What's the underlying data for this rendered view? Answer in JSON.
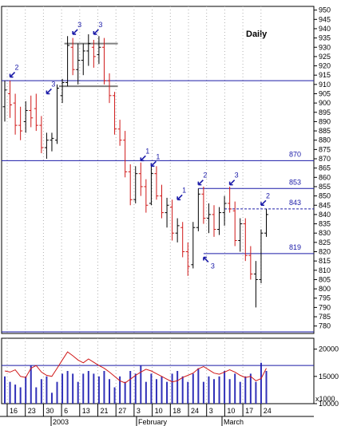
{
  "chart_data": {
    "type": "ohlc",
    "title": "Daily",
    "ylim": [
      776,
      952
    ],
    "yticks": [
      780,
      785,
      790,
      795,
      800,
      805,
      810,
      815,
      820,
      825,
      830,
      835,
      840,
      845,
      850,
      855,
      860,
      865,
      870,
      875,
      880,
      885,
      890,
      895,
      900,
      905,
      910,
      915,
      920,
      925,
      930,
      935,
      940,
      945,
      950
    ],
    "xtick_labels": [
      "16",
      "23",
      "30",
      "6",
      "13",
      "21",
      "27",
      "3",
      "10",
      "18",
      "24",
      "3",
      "10",
      "17",
      "24"
    ],
    "month_labels": [
      "2003",
      "February",
      "March"
    ],
    "grid": true,
    "bars": [
      {
        "o": 898,
        "h": 912,
        "l": 890,
        "c": 907,
        "color": "black"
      },
      {
        "o": 905,
        "h": 912,
        "l": 892,
        "c": 899,
        "color": "red"
      },
      {
        "o": 900,
        "h": 905,
        "l": 883,
        "c": 888,
        "color": "red"
      },
      {
        "o": 888,
        "h": 898,
        "l": 880,
        "c": 885,
        "color": "red"
      },
      {
        "o": 890,
        "h": 901,
        "l": 884,
        "c": 896,
        "color": "black"
      },
      {
        "o": 896,
        "h": 904,
        "l": 887,
        "c": 892,
        "color": "red"
      },
      {
        "o": 897,
        "h": 905,
        "l": 885,
        "c": 888,
        "color": "red"
      },
      {
        "o": 888,
        "h": 893,
        "l": 873,
        "c": 876,
        "color": "red"
      },
      {
        "o": 876,
        "h": 884,
        "l": 870,
        "c": 880,
        "color": "black"
      },
      {
        "o": 880,
        "h": 884,
        "l": 874,
        "c": 881,
        "color": "black"
      },
      {
        "o": 880,
        "h": 910,
        "l": 878,
        "c": 908,
        "color": "black"
      },
      {
        "o": 904,
        "h": 913,
        "l": 900,
        "c": 911,
        "color": "black"
      },
      {
        "o": 911,
        "h": 936,
        "l": 909,
        "c": 931,
        "color": "black"
      },
      {
        "o": 930,
        "h": 935,
        "l": 915,
        "c": 918,
        "color": "red"
      },
      {
        "o": 918,
        "h": 932,
        "l": 910,
        "c": 923,
        "color": "black"
      },
      {
        "o": 923,
        "h": 932,
        "l": 915,
        "c": 928,
        "color": "black"
      },
      {
        "o": 928,
        "h": 937,
        "l": 920,
        "c": 932,
        "color": "black"
      },
      {
        "o": 930,
        "h": 934,
        "l": 919,
        "c": 925,
        "color": "red"
      },
      {
        "o": 926,
        "h": 936,
        "l": 921,
        "c": 930,
        "color": "black"
      },
      {
        "o": 930,
        "h": 935,
        "l": 910,
        "c": 912,
        "color": "red"
      },
      {
        "o": 912,
        "h": 916,
        "l": 900,
        "c": 904,
        "color": "red"
      },
      {
        "o": 904,
        "h": 906,
        "l": 883,
        "c": 886,
        "color": "red"
      },
      {
        "o": 886,
        "h": 891,
        "l": 877,
        "c": 880,
        "color": "red"
      },
      {
        "o": 880,
        "h": 885,
        "l": 860,
        "c": 863,
        "color": "red"
      },
      {
        "o": 863,
        "h": 867,
        "l": 845,
        "c": 848,
        "color": "red"
      },
      {
        "o": 848,
        "h": 866,
        "l": 846,
        "c": 862,
        "color": "black"
      },
      {
        "o": 862,
        "h": 868,
        "l": 850,
        "c": 855,
        "color": "red"
      },
      {
        "o": 855,
        "h": 859,
        "l": 841,
        "c": 845,
        "color": "red"
      },
      {
        "o": 846,
        "h": 866,
        "l": 845,
        "c": 862,
        "color": "black"
      },
      {
        "o": 862,
        "h": 866,
        "l": 848,
        "c": 850,
        "color": "red"
      },
      {
        "o": 850,
        "h": 856,
        "l": 838,
        "c": 841,
        "color": "red"
      },
      {
        "o": 841,
        "h": 849,
        "l": 833,
        "c": 845,
        "color": "black"
      },
      {
        "o": 844,
        "h": 848,
        "l": 826,
        "c": 830,
        "color": "red"
      },
      {
        "o": 830,
        "h": 838,
        "l": 825,
        "c": 834,
        "color": "black"
      },
      {
        "o": 833,
        "h": 836,
        "l": 817,
        "c": 820,
        "color": "red"
      },
      {
        "o": 820,
        "h": 825,
        "l": 807,
        "c": 812,
        "color": "red"
      },
      {
        "o": 813,
        "h": 836,
        "l": 811,
        "c": 833,
        "color": "black"
      },
      {
        "o": 833,
        "h": 854,
        "l": 831,
        "c": 851,
        "color": "black"
      },
      {
        "o": 851,
        "h": 855,
        "l": 835,
        "c": 838,
        "color": "red"
      },
      {
        "o": 838,
        "h": 846,
        "l": 830,
        "c": 840,
        "color": "black"
      },
      {
        "o": 840,
        "h": 845,
        "l": 828,
        "c": 832,
        "color": "red"
      },
      {
        "o": 832,
        "h": 844,
        "l": 829,
        "c": 841,
        "color": "black"
      },
      {
        "o": 841,
        "h": 850,
        "l": 834,
        "c": 846,
        "color": "black"
      },
      {
        "o": 846,
        "h": 855,
        "l": 841,
        "c": 843,
        "color": "red"
      },
      {
        "o": 842,
        "h": 847,
        "l": 823,
        "c": 826,
        "color": "red"
      },
      {
        "o": 826,
        "h": 838,
        "l": 820,
        "c": 835,
        "color": "black"
      },
      {
        "o": 835,
        "h": 838,
        "l": 815,
        "c": 818,
        "color": "red"
      },
      {
        "o": 818,
        "h": 823,
        "l": 805,
        "c": 808,
        "color": "red"
      },
      {
        "o": 808,
        "h": 815,
        "l": 790,
        "c": 805,
        "color": "black"
      },
      {
        "o": 805,
        "h": 832,
        "l": 803,
        "c": 830,
        "color": "black"
      },
      {
        "o": 830,
        "h": 843,
        "l": 828,
        "c": 840,
        "color": "black"
      }
    ],
    "horizontal_lines": [
      {
        "y": 912,
        "style": "solid",
        "label": ""
      },
      {
        "y": 869,
        "style": "solid",
        "label": "870"
      },
      {
        "y": 854,
        "style": "solid",
        "label": "853"
      },
      {
        "y": 843,
        "style": "dashed",
        "label": "843"
      },
      {
        "y": 819,
        "style": "solid",
        "label": "819"
      }
    ],
    "segments": [
      {
        "y": 932,
        "from": 12,
        "to": 21,
        "color": "gray"
      },
      {
        "y": 909,
        "from": 11,
        "to": 21,
        "color": "gray"
      }
    ],
    "annotations": [
      {
        "bar": 1,
        "y": 914,
        "label": "2"
      },
      {
        "bar": 8,
        "y": 905,
        "label": "3"
      },
      {
        "bar": 13,
        "y": 937,
        "label": "3"
      },
      {
        "bar": 17,
        "y": 937,
        "label": "3"
      },
      {
        "bar": 26,
        "y": 869,
        "label": "1"
      },
      {
        "bar": 28,
        "y": 866,
        "label": "1"
      },
      {
        "bar": 33,
        "y": 848,
        "label": "1"
      },
      {
        "bar": 37,
        "y": 856,
        "label": "2"
      },
      {
        "bar": 43,
        "y": 856,
        "label": "3"
      },
      {
        "bar": 49,
        "y": 845,
        "label": "2"
      },
      {
        "bar": 38,
        "y": 817,
        "label": "3",
        "up": true
      }
    ],
    "volume": {
      "ylim": [
        10000,
        22000
      ],
      "yticks": [
        10000,
        15000,
        20000
      ],
      "units": "x1000",
      "level_line": 17000,
      "bars": [
        15000,
        14000,
        13500,
        13000,
        15000,
        17000,
        13000,
        14500,
        15000,
        12000,
        14000,
        15500,
        16000,
        15500,
        14000,
        15500,
        16000,
        15500,
        15000,
        16000,
        14500,
        13000,
        15000,
        14000,
        16000,
        15500,
        17000,
        14000,
        15500,
        14500,
        15000,
        14000,
        15500,
        16000,
        15000,
        14000,
        15500,
        16500,
        14000,
        15000,
        14500,
        15000,
        16000,
        14500,
        15500,
        14000,
        15000,
        15500,
        14000,
        17500,
        16000
      ],
      "oscillator": [
        16000,
        15800,
        16200,
        15000,
        14800,
        16500,
        17000,
        15800,
        15200,
        15000,
        16500,
        18000,
        19500,
        18800,
        18000,
        17500,
        18200,
        17600,
        17000,
        16500,
        15800,
        15000,
        14200,
        13800,
        14500,
        15200,
        15800,
        16300,
        16000,
        15500,
        15000,
        14500,
        14000,
        14200,
        14800,
        15200,
        15600,
        16400,
        16800,
        16200,
        15600,
        15400,
        15800,
        16200,
        15800,
        15200,
        14800,
        15000,
        14200,
        14600,
        16500
      ]
    }
  }
}
